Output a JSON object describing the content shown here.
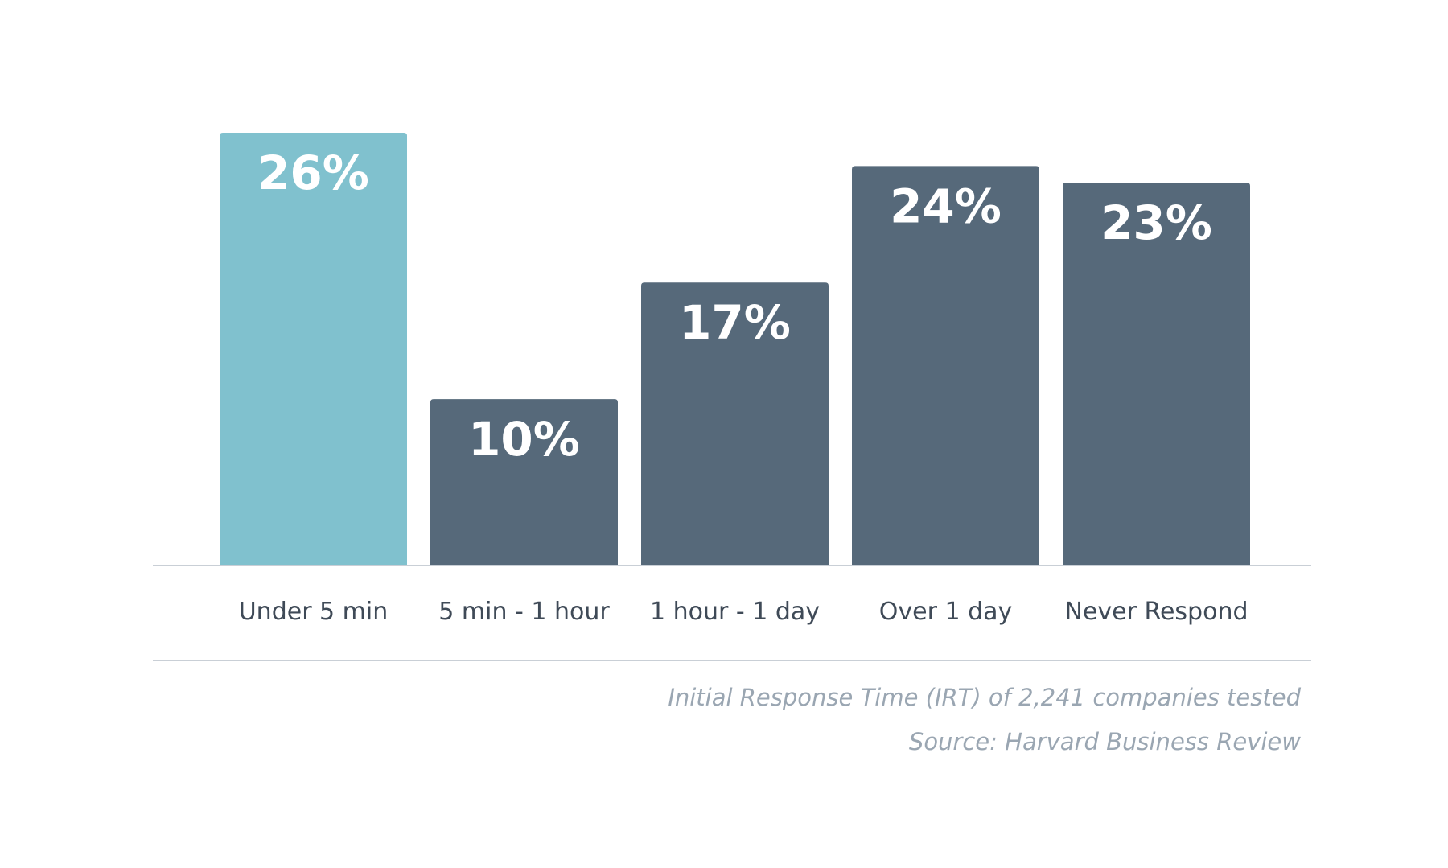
{
  "chart_data": {
    "type": "bar",
    "categories": [
      "Under 5 min",
      "5 min - 1 hour",
      "1 hour - 1 day",
      "Over 1 day",
      "Never Respond"
    ],
    "values": [
      26,
      10,
      17,
      24,
      23
    ],
    "value_labels": [
      "26%",
      "10%",
      "17%",
      "24%",
      "23%"
    ],
    "unit": "%",
    "ylim": [
      0,
      26
    ],
    "grid": false,
    "legend": "none",
    "highlight_index": 0,
    "colors": {
      "highlight": "#80c1ce",
      "default": "#56697a",
      "axis": "#c9cfd6",
      "label": "#3f4a57",
      "caption": "#9aa6b2"
    }
  },
  "caption": {
    "line1": "Initial Response Time (IRT) of 2,241 companies tested",
    "line2": "Source: Harvard Business Review"
  }
}
